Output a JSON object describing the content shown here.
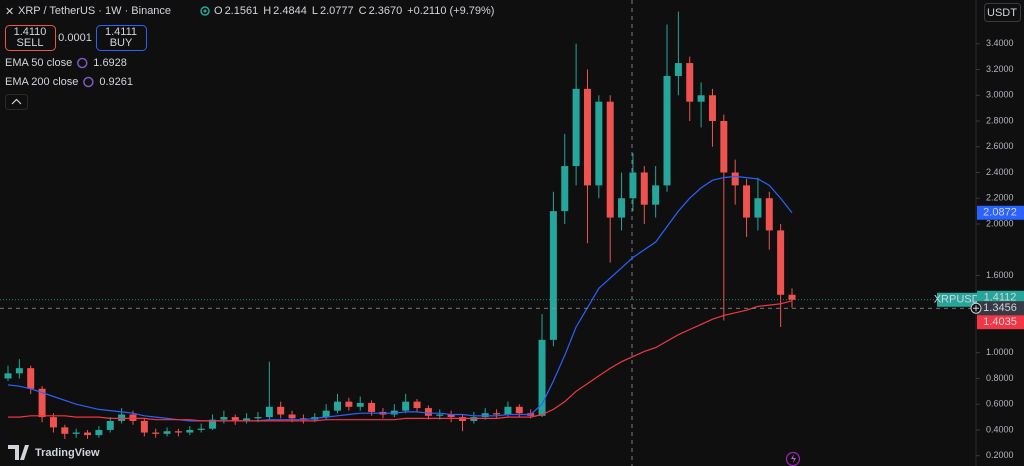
{
  "header": {
    "title": "XRP / TetherUS · 1W · Binance",
    "ohlc": [
      {
        "label": "O",
        "value": "2.1561"
      },
      {
        "label": "H",
        "value": "2.4844"
      },
      {
        "label": "L",
        "value": "2.0777"
      },
      {
        "label": "C",
        "value": "2.3670"
      }
    ],
    "change": "+0.2110 (+9.79%)"
  },
  "trade": {
    "sell_price": "1.4110",
    "sell": "SELL",
    "spread": "0.0001",
    "buy_price": "1.4111",
    "buy": "BUY"
  },
  "axis_currency": "USDT",
  "symbol": "XRPUSDT",
  "footer": "TradingView",
  "chart_data": {
    "type": "candlestick",
    "up_color": "#26a69a",
    "down_color": "#ef5350",
    "ylim": [
      0.12,
      3.74
    ],
    "yticks": [
      {
        "value": 0.2,
        "label": "0.2000"
      },
      {
        "value": 0.4,
        "label": "0.4000"
      },
      {
        "value": 0.6,
        "label": "0.6000"
      },
      {
        "value": 0.8,
        "label": "0.8000"
      },
      {
        "value": 1.0,
        "label": "1.0000"
      },
      {
        "value": 1.6,
        "label": "1.6000"
      },
      {
        "value": 2.0,
        "label": "2.0000"
      },
      {
        "value": 2.2,
        "label": "2.2000"
      },
      {
        "value": 2.4,
        "label": "2.4000"
      },
      {
        "value": 2.6,
        "label": "2.6000"
      },
      {
        "value": 2.8,
        "label": "2.8000"
      },
      {
        "value": 3.0,
        "label": "3.0000"
      },
      {
        "value": 3.2,
        "label": "3.2000"
      },
      {
        "value": 3.4,
        "label": "3.4000"
      }
    ],
    "open": [
      0.8,
      0.84,
      0.88,
      0.72,
      0.5,
      0.42,
      0.37,
      0.38,
      0.36,
      0.4,
      0.47,
      0.52,
      0.47,
      0.38,
      0.37,
      0.39,
      0.38,
      0.4,
      0.41,
      0.48,
      0.5,
      0.47,
      0.49,
      0.5,
      0.58,
      0.52,
      0.49,
      0.48,
      0.5,
      0.55,
      0.62,
      0.58,
      0.61,
      0.54,
      0.52,
      0.55,
      0.62,
      0.57,
      0.51,
      0.52,
      0.5,
      0.47,
      0.5,
      0.53,
      0.52,
      0.58,
      0.53,
      0.51,
      1.1,
      2.1,
      2.45,
      3.05,
      2.3,
      2.95,
      2.05,
      2.2,
      2.4,
      2.15,
      2.3,
      3.15,
      3.25,
      2.95,
      3.0,
      2.8,
      2.4,
      2.3,
      2.05,
      2.2,
      1.95,
      1.45
    ],
    "high": [
      0.9,
      0.95,
      0.9,
      0.74,
      0.53,
      0.44,
      0.41,
      0.4,
      0.43,
      0.5,
      0.57,
      0.55,
      0.49,
      0.41,
      0.42,
      0.41,
      0.43,
      0.45,
      0.52,
      0.55,
      0.52,
      0.53,
      0.54,
      0.93,
      0.62,
      0.55,
      0.52,
      0.53,
      0.6,
      0.68,
      0.65,
      0.66,
      0.63,
      0.57,
      0.6,
      0.68,
      0.64,
      0.59,
      0.56,
      0.55,
      0.52,
      0.54,
      0.57,
      0.56,
      0.62,
      0.6,
      0.56,
      1.3,
      2.25,
      2.7,
      3.4,
      3.2,
      3.0,
      3.0,
      2.4,
      2.55,
      2.45,
      2.45,
      3.55,
      3.65,
      3.3,
      3.1,
      3.05,
      2.85,
      2.5,
      2.35,
      2.36,
      2.25,
      2.0,
      1.5
    ],
    "low": [
      0.78,
      0.8,
      0.68,
      0.46,
      0.38,
      0.33,
      0.34,
      0.33,
      0.34,
      0.38,
      0.45,
      0.44,
      0.35,
      0.34,
      0.35,
      0.35,
      0.36,
      0.38,
      0.4,
      0.45,
      0.44,
      0.45,
      0.46,
      0.48,
      0.49,
      0.46,
      0.45,
      0.46,
      0.48,
      0.53,
      0.55,
      0.55,
      0.51,
      0.49,
      0.5,
      0.53,
      0.54,
      0.48,
      0.48,
      0.46,
      0.39,
      0.45,
      0.48,
      0.49,
      0.5,
      0.5,
      0.49,
      0.5,
      1.05,
      2.0,
      2.3,
      1.85,
      2.2,
      1.7,
      1.95,
      2.1,
      2.0,
      2.05,
      2.25,
      3.0,
      2.8,
      2.75,
      2.6,
      1.25,
      2.15,
      1.9,
      1.95,
      1.8,
      1.2,
      1.35
    ],
    "close": [
      0.84,
      0.88,
      0.72,
      0.5,
      0.42,
      0.37,
      0.38,
      0.36,
      0.4,
      0.47,
      0.52,
      0.47,
      0.38,
      0.37,
      0.39,
      0.38,
      0.4,
      0.41,
      0.48,
      0.5,
      0.47,
      0.49,
      0.5,
      0.58,
      0.52,
      0.49,
      0.48,
      0.5,
      0.55,
      0.62,
      0.58,
      0.61,
      0.54,
      0.52,
      0.55,
      0.62,
      0.57,
      0.51,
      0.52,
      0.5,
      0.47,
      0.5,
      0.53,
      0.52,
      0.58,
      0.53,
      0.51,
      1.1,
      2.1,
      2.45,
      3.05,
      2.3,
      2.95,
      2.05,
      2.2,
      2.4,
      2.15,
      2.3,
      3.15,
      3.25,
      2.95,
      3.0,
      2.8,
      2.4,
      2.3,
      2.05,
      2.2,
      1.95,
      1.45,
      1.4112
    ],
    "series": [
      {
        "name": "EMA 50 close",
        "color": "#2962ff",
        "crosshair_value": 1.6928,
        "values": [
          0.75,
          0.74,
          0.72,
          0.69,
          0.66,
          0.63,
          0.6,
          0.58,
          0.56,
          0.55,
          0.54,
          0.53,
          0.51,
          0.5,
          0.49,
          0.48,
          0.47,
          0.47,
          0.47,
          0.47,
          0.47,
          0.47,
          0.47,
          0.48,
          0.48,
          0.48,
          0.48,
          0.49,
          0.5,
          0.51,
          0.52,
          0.53,
          0.53,
          0.53,
          0.53,
          0.54,
          0.54,
          0.53,
          0.53,
          0.52,
          0.52,
          0.51,
          0.51,
          0.51,
          0.52,
          0.52,
          0.52,
          0.6,
          0.78,
          0.98,
          1.2,
          1.35,
          1.5,
          1.58,
          1.66,
          1.74,
          1.8,
          1.86,
          1.98,
          2.1,
          2.2,
          2.28,
          2.34,
          2.36,
          2.37,
          2.36,
          2.35,
          2.3,
          2.2,
          2.0872
        ]
      },
      {
        "name": "EMA 200 close",
        "color": "#f23645",
        "crosshair_value": 0.9261,
        "values": [
          0.5,
          0.5,
          0.51,
          0.51,
          0.51,
          0.51,
          0.5,
          0.5,
          0.5,
          0.49,
          0.49,
          0.49,
          0.49,
          0.48,
          0.48,
          0.48,
          0.48,
          0.47,
          0.47,
          0.47,
          0.47,
          0.47,
          0.47,
          0.47,
          0.47,
          0.47,
          0.47,
          0.47,
          0.48,
          0.48,
          0.48,
          0.48,
          0.48,
          0.48,
          0.48,
          0.49,
          0.49,
          0.49,
          0.49,
          0.49,
          0.49,
          0.49,
          0.49,
          0.49,
          0.5,
          0.5,
          0.5,
          0.52,
          0.56,
          0.62,
          0.7,
          0.76,
          0.82,
          0.88,
          0.93,
          0.97,
          1.01,
          1.04,
          1.09,
          1.14,
          1.18,
          1.22,
          1.26,
          1.29,
          1.31,
          1.33,
          1.36,
          1.37,
          1.38,
          1.4035
        ]
      }
    ],
    "crosshair_price": 1.3456
  }
}
